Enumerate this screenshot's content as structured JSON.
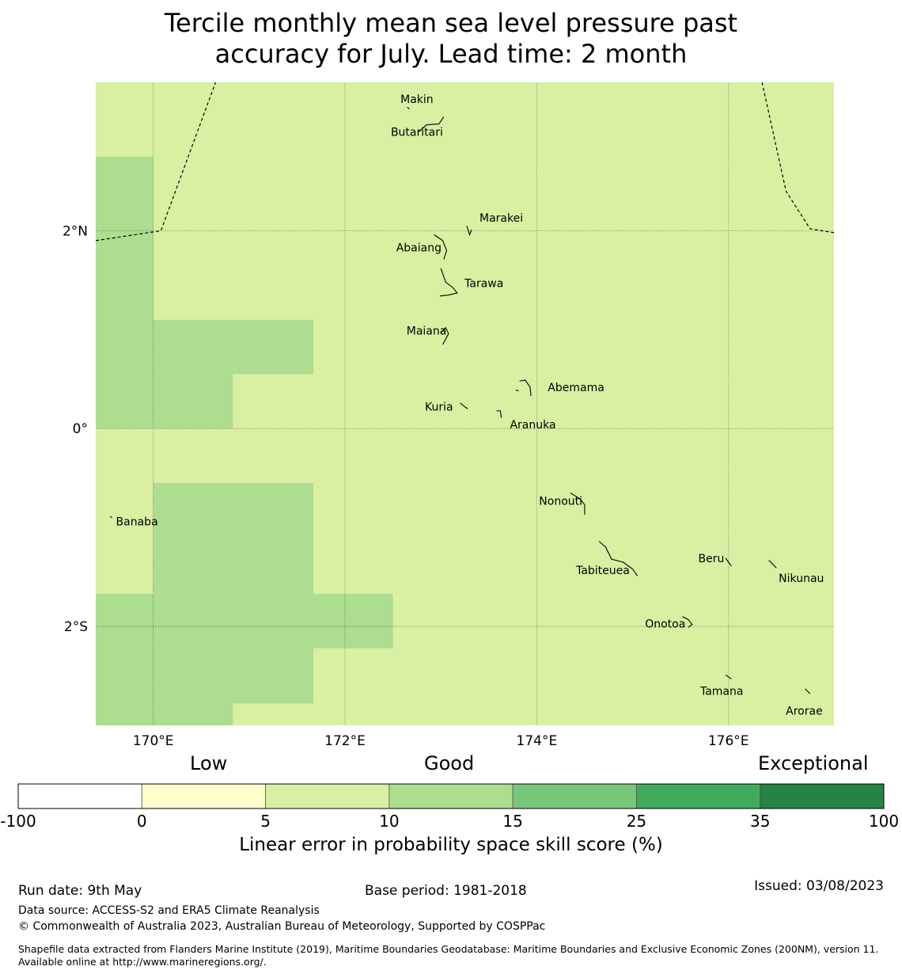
{
  "title": {
    "line1": "Tercile monthly mean sea level pressure past",
    "line2": "accuracy for July. Lead time: 2 month"
  },
  "map": {
    "lon_range": [
      169.4,
      177.1
    ],
    "lat_range": [
      -3.0,
      3.5
    ],
    "background_color": "#d9f0a3",
    "cell_color": "#addd8e",
    "cells": [
      {
        "lon": [
          169.4,
          170.0
        ],
        "lat": [
          0.0,
          2.75
        ]
      },
      {
        "lon": [
          170.0,
          171.67
        ],
        "lat": [
          0.55,
          1.1
        ]
      },
      {
        "lon": [
          170.0,
          170.83
        ],
        "lat": [
          0.0,
          0.55
        ]
      },
      {
        "lon": [
          170.0,
          171.67
        ],
        "lat": [
          -1.67,
          -0.55
        ]
      },
      {
        "lon": [
          169.4,
          172.5
        ],
        "lat": [
          -2.22,
          -1.67
        ]
      },
      {
        "lon": [
          169.4,
          171.67
        ],
        "lat": [
          -2.78,
          -2.22
        ]
      },
      {
        "lon": [
          169.4,
          170.83
        ],
        "lat": [
          -3.0,
          -2.78
        ]
      }
    ],
    "x_ticks": [
      {
        "lon": 170,
        "label": "170°E"
      },
      {
        "lon": 172,
        "label": "172°E"
      },
      {
        "lon": 174,
        "label": "174°E"
      },
      {
        "lon": 176,
        "label": "176°E"
      }
    ],
    "y_ticks": [
      {
        "lat": 2,
        "label": "2°N"
      },
      {
        "lat": 0,
        "label": "0°"
      },
      {
        "lat": -2,
        "label": "2°S"
      }
    ],
    "places": [
      {
        "name": "Makin",
        "lon": 172.75,
        "lat": 3.33
      },
      {
        "name": "Butaritari",
        "lon": 172.75,
        "lat": 3.0
      },
      {
        "name": "Marakei",
        "lon": 173.63,
        "lat": 2.13
      },
      {
        "name": "Abaiang",
        "lon": 172.77,
        "lat": 1.83
      },
      {
        "name": "Tarawa",
        "lon": 173.45,
        "lat": 1.47
      },
      {
        "name": "Maiana",
        "lon": 172.85,
        "lat": 0.99
      },
      {
        "name": "Abemama",
        "lon": 174.41,
        "lat": 0.42
      },
      {
        "name": "Kuria",
        "lon": 172.98,
        "lat": 0.22
      },
      {
        "name": "Aranuka",
        "lon": 173.96,
        "lat": 0.04
      },
      {
        "name": "Nonouti",
        "lon": 174.25,
        "lat": -0.73
      },
      {
        "name": "Banaba",
        "lon": 169.83,
        "lat": -0.94
      },
      {
        "name": "Tabiteuea",
        "lon": 174.69,
        "lat": -1.43
      },
      {
        "name": "Beru",
        "lon": 175.82,
        "lat": -1.31
      },
      {
        "name": "Nikunau",
        "lon": 176.76,
        "lat": -1.51
      },
      {
        "name": "Onotoa",
        "lon": 175.34,
        "lat": -1.97
      },
      {
        "name": "Tamana",
        "lon": 175.93,
        "lat": -2.65
      },
      {
        "name": "Arorae",
        "lon": 176.79,
        "lat": -2.85
      }
    ],
    "islands": [
      [
        [
          172.65,
          3.25
        ],
        [
          172.67,
          3.23
        ]
      ],
      [
        [
          172.77,
          3.0
        ],
        [
          172.85,
          3.07
        ],
        [
          172.98,
          3.08
        ],
        [
          173.03,
          3.15
        ]
      ],
      [
        [
          173.27,
          2.05
        ],
        [
          173.3,
          1.96
        ],
        [
          173.32,
          2.01
        ]
      ],
      [
        [
          172.93,
          1.96
        ],
        [
          173.02,
          1.9
        ],
        [
          173.06,
          1.8
        ],
        [
          173.03,
          1.71
        ]
      ],
      [
        [
          173.0,
          1.62
        ],
        [
          173.05,
          1.48
        ],
        [
          173.12,
          1.43
        ],
        [
          173.17,
          1.37
        ],
        [
          173.08,
          1.35
        ],
        [
          172.99,
          1.34
        ]
      ],
      [
        [
          173.0,
          0.97
        ],
        [
          173.05,
          1.02
        ],
        [
          173.08,
          0.96
        ],
        [
          173.02,
          0.85
        ]
      ],
      [
        [
          173.82,
          0.48
        ],
        [
          173.88,
          0.49
        ],
        [
          173.93,
          0.42
        ],
        [
          173.94,
          0.33
        ]
      ],
      [
        [
          173.78,
          0.39
        ],
        [
          173.81,
          0.38
        ]
      ],
      [
        [
          173.2,
          0.26
        ],
        [
          173.25,
          0.22
        ],
        [
          173.28,
          0.2
        ]
      ],
      [
        [
          173.58,
          0.18
        ],
        [
          173.62,
          0.18
        ],
        [
          173.63,
          0.11
        ]
      ],
      [
        [
          174.35,
          -0.65
        ],
        [
          174.45,
          -0.71
        ],
        [
          174.5,
          -0.77
        ],
        [
          174.5,
          -0.87
        ]
      ],
      [
        [
          169.55,
          -0.89
        ],
        [
          169.57,
          -0.9
        ]
      ],
      [
        [
          174.65,
          -1.14
        ],
        [
          174.72,
          -1.2
        ],
        [
          174.78,
          -1.32
        ],
        [
          174.9,
          -1.35
        ],
        [
          175.0,
          -1.42
        ],
        [
          175.05,
          -1.49
        ]
      ],
      [
        [
          175.97,
          -1.31
        ],
        [
          176.03,
          -1.39
        ]
      ],
      [
        [
          176.42,
          -1.33
        ],
        [
          176.5,
          -1.41
        ]
      ],
      [
        [
          175.52,
          -1.9
        ],
        [
          175.58,
          -1.93
        ],
        [
          175.62,
          -1.98
        ],
        [
          175.58,
          -2.01
        ]
      ],
      [
        [
          175.97,
          -2.49
        ],
        [
          176.03,
          -2.53
        ]
      ],
      [
        [
          176.8,
          -2.63
        ],
        [
          176.85,
          -2.68
        ]
      ]
    ],
    "eez_boundaries": [
      [
        [
          169.4,
          1.9
        ],
        [
          170.08,
          2.0
        ],
        [
          170.65,
          3.5
        ]
      ],
      [
        [
          176.35,
          3.5
        ],
        [
          176.6,
          2.4
        ],
        [
          176.85,
          2.02
        ],
        [
          177.1,
          1.98
        ]
      ]
    ]
  },
  "colorbar": {
    "headings": {
      "low": "Low",
      "good": "Good",
      "exceptional": "Exceptional"
    },
    "bins": [
      {
        "from": "-100",
        "to": "0",
        "color": "#ffffff"
      },
      {
        "from": "0",
        "to": "5",
        "color": "#ffffcc"
      },
      {
        "from": "5",
        "to": "10",
        "color": "#d9f0a3"
      },
      {
        "from": "10",
        "to": "15",
        "color": "#addd8e"
      },
      {
        "from": "15",
        "to": "25",
        "color": "#78c679"
      },
      {
        "from": "25",
        "to": "35",
        "color": "#41ab5d"
      },
      {
        "from": "35",
        "to": "100",
        "color": "#238443"
      }
    ],
    "tick_labels": [
      "-100",
      "0",
      "5",
      "10",
      "15",
      "25",
      "35",
      "100"
    ],
    "label": "Linear error in probability space skill score (%)"
  },
  "footer": {
    "run_date": "Run date: 9th May",
    "base_period": "Base period: 1981-2018",
    "issued": "Issued: 03/08/2023",
    "data_source": "Data source: ACCESS-S2 and ERA5 Climate Reanalysis",
    "copyright": "© Commonwealth of Australia 2023, Australian Bureau of Meteorology, Supported by COSPPac",
    "shapefile_note": "Shapefile data extracted from Flanders Marine Institute (2019), Maritime Boundaries Geodatabase: Maritime Boundaries and Exclusive Economic Zones (200NM), version 11. Available online at http://www.marineregions.org/."
  }
}
